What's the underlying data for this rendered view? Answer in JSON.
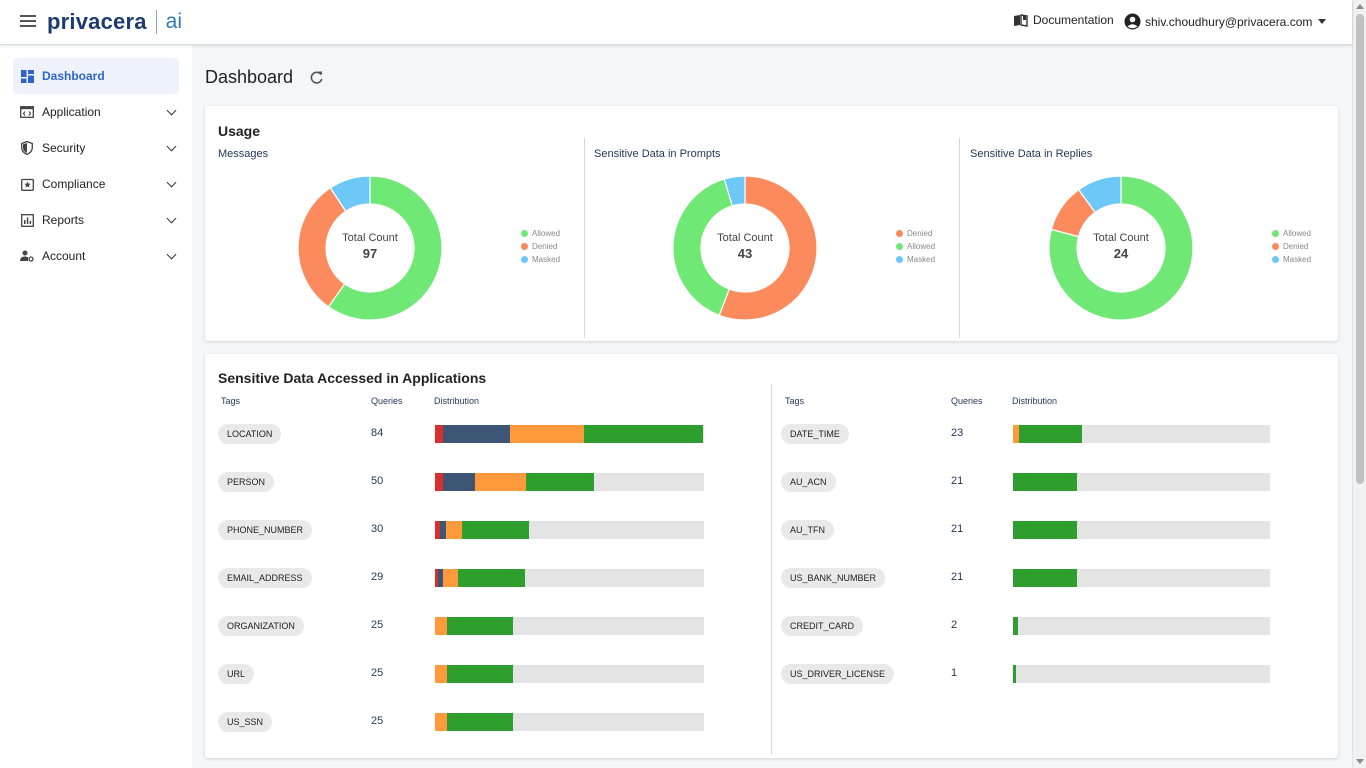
{
  "header": {
    "logo_text": "privacera",
    "logo_ai": "ai",
    "documentation_label": "Documentation",
    "user_email": "shiv.choudhury@privacera.com"
  },
  "sidebar": {
    "items": [
      {
        "label": "Dashboard",
        "icon": "dashboard-icon",
        "active": true
      },
      {
        "label": "Application",
        "icon": "application-icon"
      },
      {
        "label": "Security",
        "icon": "shield-icon"
      },
      {
        "label": "Compliance",
        "icon": "badge-icon"
      },
      {
        "label": "Reports",
        "icon": "report-icon"
      },
      {
        "label": "Account",
        "icon": "account-settings-icon"
      }
    ]
  },
  "page": {
    "title": "Dashboard"
  },
  "colors": {
    "allowed": "#6fe875",
    "denied": "#fb8a5c",
    "masked": "#6dc8f7",
    "bar_red": "#d9302c",
    "bar_navy": "#3e5675",
    "bar_orange": "#ff9a3c",
    "bar_green": "#2e9e2e",
    "bar_track": "#e4e4e4"
  },
  "usage": {
    "title": "Usage",
    "total_label": "Total Count",
    "panels": [
      {
        "title": "Messages",
        "total": "97",
        "legend": [
          "Allowed",
          "Denied",
          "Masked"
        ],
        "slices": [
          {
            "name": "Allowed",
            "value": 58
          },
          {
            "name": "Denied",
            "value": 30
          },
          {
            "name": "Masked",
            "value": 9
          }
        ]
      },
      {
        "title": "Sensitive Data in Prompts",
        "total": "43",
        "legend": [
          "Denied",
          "Allowed",
          "Masked"
        ],
        "slices": [
          {
            "name": "Denied",
            "value": 24
          },
          {
            "name": "Allowed",
            "value": 17
          },
          {
            "name": "Masked",
            "value": 2
          }
        ]
      },
      {
        "title": "Sensitive Data in Replies",
        "total": "24",
        "legend": [
          "Allowed",
          "Denied",
          "Masked"
        ],
        "slices": [
          {
            "name": "Allowed",
            "value": 19
          },
          {
            "name": "Denied",
            "value": 2.6
          },
          {
            "name": "Masked",
            "value": 2.4
          }
        ]
      }
    ]
  },
  "sensitive": {
    "title": "Sensitive Data Accessed in Applications",
    "headers": {
      "tags": "Tags",
      "queries": "Queries",
      "distribution": "Distribution"
    },
    "left": [
      {
        "tag": "LOCATION",
        "queries": "84",
        "dist": {
          "red": 0.03,
          "navy": 0.25,
          "orange": 0.275,
          "green": 0.44
        }
      },
      {
        "tag": "PERSON",
        "queries": "50",
        "dist": {
          "red": 0.03,
          "navy": 0.12,
          "orange": 0.19,
          "green": 0.25
        }
      },
      {
        "tag": "PHONE_NUMBER",
        "queries": "30",
        "dist": {
          "red": 0.02,
          "navy": 0.02,
          "orange": 0.06,
          "green": 0.25
        }
      },
      {
        "tag": "EMAIL_ADDRESS",
        "queries": "29",
        "dist": {
          "red": 0.01,
          "navy": 0.02,
          "orange": 0.055,
          "green": 0.25
        }
      },
      {
        "tag": "ORGANIZATION",
        "queries": "25",
        "dist": {
          "red": 0,
          "navy": 0,
          "orange": 0.045,
          "green": 0.245
        }
      },
      {
        "tag": "URL",
        "queries": "25",
        "dist": {
          "red": 0,
          "navy": 0,
          "orange": 0.045,
          "green": 0.245
        }
      },
      {
        "tag": "US_SSN",
        "queries": "25",
        "dist": {
          "red": 0,
          "navy": 0,
          "orange": 0.045,
          "green": 0.245
        }
      }
    ],
    "right": [
      {
        "tag": "DATE_TIME",
        "queries": "23",
        "dist": {
          "red": 0,
          "navy": 0,
          "orange": 0.025,
          "green": 0.245
        }
      },
      {
        "tag": "AU_ACN",
        "queries": "21",
        "dist": {
          "red": 0,
          "navy": 0,
          "orange": 0,
          "green": 0.25
        }
      },
      {
        "tag": "AU_TFN",
        "queries": "21",
        "dist": {
          "red": 0,
          "navy": 0,
          "orange": 0,
          "green": 0.25
        }
      },
      {
        "tag": "US_BANK_NUMBER",
        "queries": "21",
        "dist": {
          "red": 0,
          "navy": 0,
          "orange": 0,
          "green": 0.25
        }
      },
      {
        "tag": "CREDIT_CARD",
        "queries": "2",
        "dist": {
          "red": 0,
          "navy": 0,
          "orange": 0,
          "green": 0.02
        }
      },
      {
        "tag": "US_DRIVER_LICENSE",
        "queries": "1",
        "dist": {
          "red": 0,
          "navy": 0,
          "orange": 0,
          "green": 0.01
        }
      }
    ]
  }
}
